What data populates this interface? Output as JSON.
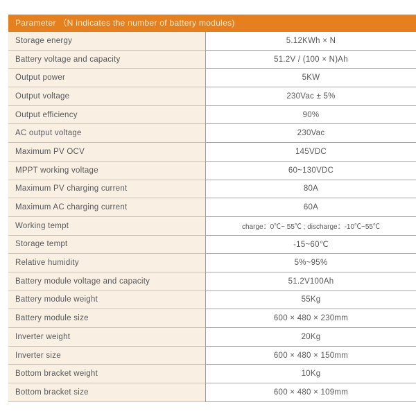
{
  "colors": {
    "header_bg": "#e6801e",
    "header_text": "#fbecd9",
    "label_column_bg": "#f9efe3",
    "value_column_bg": "#ffffff",
    "body_text": "#58595b",
    "divider_gray": "#a5a5a5"
  },
  "table": {
    "header": "Parameter （N indicates the number of battery modules)",
    "rows": [
      {
        "label": "Storage energy",
        "value": "5.12KWh × N"
      },
      {
        "label": "Battery voltage and capacity",
        "value": "51.2V / (100 × N)Ah"
      },
      {
        "label": "Output power",
        "value": "5KW"
      },
      {
        "label": "Output voltage",
        "value": "230Vac ± 5%"
      },
      {
        "label": "Output efficiency",
        "value": "90%"
      },
      {
        "label": "AC output voltage",
        "value": "230Vac"
      },
      {
        "label": "Maximum PV OCV",
        "value": "145VDC"
      },
      {
        "label": "MPPT working voltage",
        "value": "60~130VDC"
      },
      {
        "label": "Maximum PV charging current",
        "value": "80A"
      },
      {
        "label": "Maximum AC charging current",
        "value": "60A"
      },
      {
        "label": "Working tempt",
        "value": "charge：0℃~ 55℃ ; discharge：-10℃~55℃"
      },
      {
        "label": "Storage tempt",
        "value": "-15~60℃"
      },
      {
        "label": "Relative humidity",
        "value": "5%~95%"
      },
      {
        "label": "Battery module voltage and capacity",
        "value": "51.2V100Ah"
      },
      {
        "label": "Battery module weight",
        "value": "55Kg"
      },
      {
        "label": "Battery module size",
        "value": "600 × 480 × 230mm"
      },
      {
        "label": "Inverter weight",
        "value": "20Kg"
      },
      {
        "label": "Inverter size",
        "value": "600 × 480 × 150mm"
      },
      {
        "label": "Bottom bracket weight",
        "value": "10Kg"
      },
      {
        "label": "Bottom bracket size",
        "value": "600 × 480 × 109mm"
      }
    ]
  }
}
